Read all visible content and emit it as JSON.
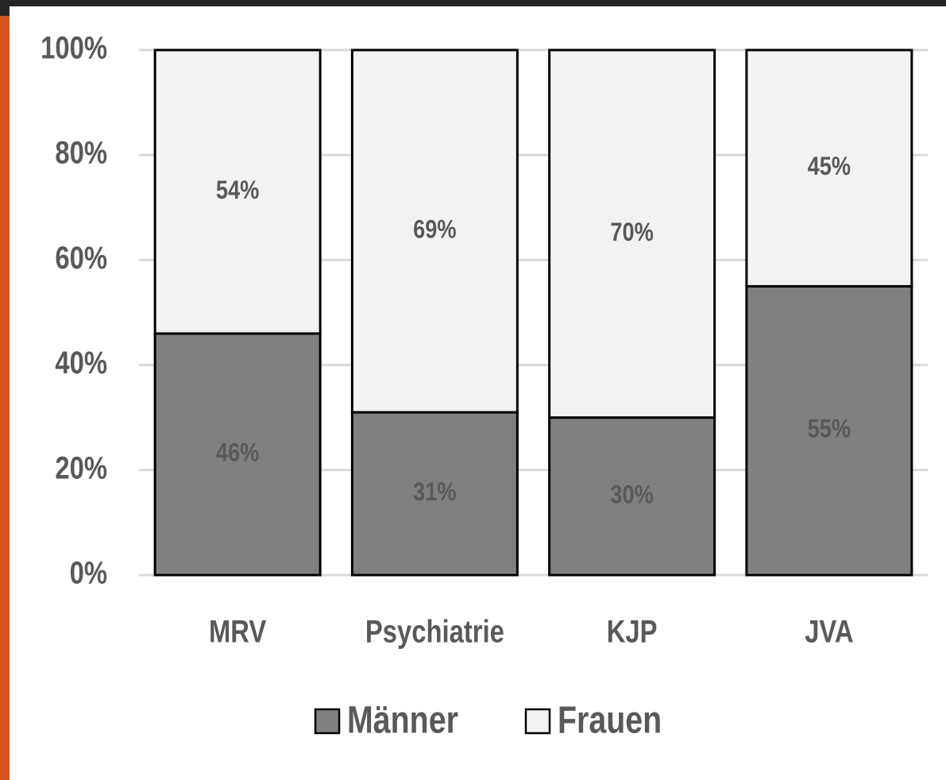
{
  "chart_data": {
    "type": "stacked_bar",
    "categories": [
      "MRV",
      "Psychiatrie",
      "KJP",
      "JVA"
    ],
    "series": [
      {
        "name": "Männer",
        "color": "#808080",
        "values": [
          46,
          31,
          30,
          55
        ],
        "value_labels": [
          "46%",
          "31%",
          "30%",
          "55%"
        ]
      },
      {
        "name": "Frauen",
        "color": "#f2f2f2",
        "values": [
          54,
          69,
          70,
          45
        ],
        "value_labels": [
          "54%",
          "69%",
          "70%",
          "45%"
        ]
      }
    ],
    "ylim": [
      0,
      100
    ],
    "yticks": [
      {
        "value": 0,
        "label": "0%"
      },
      {
        "value": 20,
        "label": "20%"
      },
      {
        "value": 40,
        "label": "40%"
      },
      {
        "value": 60,
        "label": "60%"
      },
      {
        "value": 80,
        "label": "80%"
      },
      {
        "value": 100,
        "label": "100%"
      }
    ],
    "grid": true,
    "legend": "bottom"
  }
}
